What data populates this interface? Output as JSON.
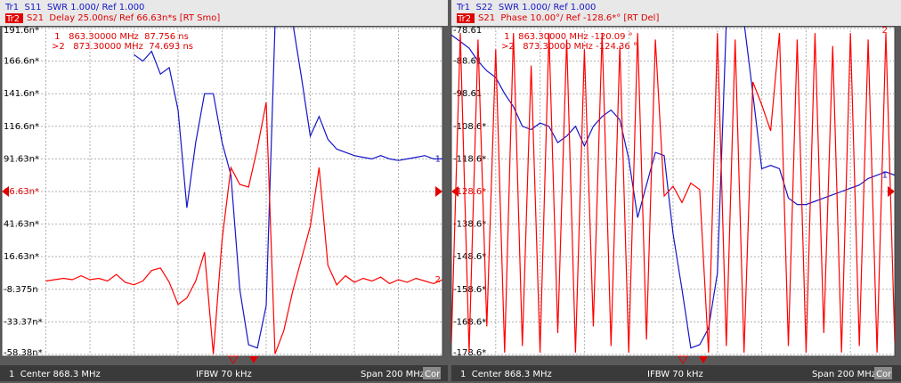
{
  "chart_data": [
    {
      "type": "line",
      "trace1_header": "Tr1  S11  SWR 1.000/ Ref 1.000",
      "trace2_id": "Tr2",
      "trace2_header": "S21  Delay 25.00ns/ Ref 66.63n*s [RT Smo]",
      "marker_readouts": [
        " 1   863.30000 MHz  87.756 ns",
        ">2   873.30000 MHz  74.693 ns"
      ],
      "status": [
        "1  Center 868.3 MHz",
        "IFBW 70 kHz",
        "Span 200 MHz",
        "Cor"
      ],
      "x": [
        768.3,
        772.3,
        776.3,
        780.3,
        784.3,
        788.3,
        792.3,
        796.3,
        800.3,
        804.3,
        808.3,
        812.3,
        816.3,
        820.3,
        824.3,
        828.3,
        832.3,
        836.3,
        840.3,
        844.3,
        848.3,
        852.3,
        856.3,
        860.3,
        864.3,
        868.3,
        872.3,
        876.3,
        880.3,
        884.3,
        888.3,
        892.3,
        896.3,
        900.3,
        904.3,
        908.3,
        912.3,
        916.3,
        920.3,
        924.3,
        928.3,
        932.3,
        936.3,
        940.3,
        944.3,
        948.3,
        952.3,
        956.3,
        960.3,
        964.3,
        968.3
      ],
      "xlim": [
        768.3,
        968.3
      ],
      "ylim": [
        -58.38,
        191.6
      ],
      "yticks": [
        {
          "value": 191.6,
          "label": "191.6n*"
        },
        {
          "value": 166.6,
          "label": "166.6n*"
        },
        {
          "value": 141.6,
          "label": "141.6n*"
        },
        {
          "value": 116.6,
          "label": "116.6n*"
        },
        {
          "value": 91.63,
          "label": "91.63n*"
        },
        {
          "value": 66.63,
          "label": "66.63n*"
        },
        {
          "value": 41.63,
          "label": "41.63n*"
        },
        {
          "value": 16.63,
          "label": "16.63n*"
        },
        {
          "value": -8.375,
          "label": "-8.375n"
        },
        {
          "value": -33.37,
          "label": "-33.37n*"
        },
        {
          "value": -58.38,
          "label": "-58.38n*"
        }
      ],
      "y2lim": [
        -5,
        5
      ],
      "grid": true,
      "series": [
        {
          "name": "1",
          "color": "#1515c8",
          "axis": "y2",
          "values": [
            null,
            null,
            null,
            null,
            null,
            null,
            null,
            null,
            null,
            null,
            null,
            null,
            null,
            null,
            null,
            4.2,
            4.0,
            4.3,
            3.6,
            3.8,
            2.5,
            -0.5,
            1.5,
            3.0,
            3.0,
            1.5,
            0.5,
            -3,
            -4.7,
            -4.8,
            -3.5,
            5.1,
            5.2,
            5.2,
            3.5,
            1.7,
            2.3,
            1.6,
            1.3,
            1.2,
            1.1,
            1.05,
            1.0,
            1.1,
            1.0,
            0.95,
            1.0,
            1.05,
            1.1,
            1.0,
            1.0
          ]
        },
        {
          "name": "2",
          "color": "#ff0000",
          "values": [
            null,
            null,
            null,
            null,
            null,
            -2,
            -1,
            0,
            -1,
            2,
            -1,
            0,
            -2,
            3,
            -3,
            -5,
            -2,
            6,
            8,
            -3,
            -20,
            -15,
            -2,
            20,
            -58,
            30,
            85,
            72,
            70,
            100,
            135,
            -58,
            -40,
            -10,
            15,
            40,
            85,
            10,
            -5,
            2,
            -3,
            0,
            -2,
            1,
            -4,
            -1,
            -3,
            0,
            -2,
            -4,
            -1
          ]
        }
      ]
    },
    {
      "type": "line",
      "trace1_header": "Tr1  S22  SWR 1.000/ Ref 1.000",
      "trace2_id": "Tr2",
      "trace2_header": "S21  Phase 10.00°/ Ref -128.6*° [RT Del]",
      "marker_readouts": [
        " 1   863.30000 MHz -120.09 °",
        ">2   873.30000 MHz -124.36 °"
      ],
      "status": [
        "1  Center 868.3 MHz",
        "IFBW 70 kHz",
        "Span 200 MHz",
        "Cor"
      ],
      "x": [
        768.3,
        772.3,
        776.3,
        780.3,
        784.3,
        788.3,
        792.3,
        796.3,
        800.3,
        804.3,
        808.3,
        812.3,
        816.3,
        820.3,
        824.3,
        828.3,
        832.3,
        836.3,
        840.3,
        844.3,
        848.3,
        852.3,
        856.3,
        860.3,
        864.3,
        868.3,
        872.3,
        876.3,
        880.3,
        884.3,
        888.3,
        892.3,
        896.3,
        900.3,
        904.3,
        908.3,
        912.3,
        916.3,
        920.3,
        924.3,
        928.3,
        932.3,
        936.3,
        940.3,
        944.3,
        948.3,
        952.3,
        956.3,
        960.3,
        964.3,
        968.3
      ],
      "xlim": [
        768.3,
        968.3
      ],
      "ylim": [
        -178.6,
        -78.61
      ],
      "yticks": [
        -78.61,
        -88.61,
        -98.61,
        {
          "value": -108.6,
          "label": "-108.6*"
        },
        {
          "value": -118.6,
          "label": "-118.6*"
        },
        {
          "value": -128.6,
          "label": "-128.6*"
        },
        {
          "value": -138.6,
          "label": "-138.6*"
        },
        {
          "value": -148.6,
          "label": "-148.6*"
        },
        {
          "value": -158.6,
          "label": "-158.6*"
        },
        {
          "value": -168.6,
          "label": "-168.6*"
        },
        {
          "value": -178.6,
          "label": "-178.6*"
        }
      ],
      "y2lim": [
        -5,
        5
      ],
      "grid": true,
      "series": [
        {
          "name": "1",
          "color": "#1515c8",
          "axis": "y2",
          "values": [
            4.8,
            4.6,
            4.4,
            4.0,
            3.7,
            3.5,
            3.0,
            2.6,
            2.0,
            1.9,
            2.1,
            2.0,
            1.5,
            1.7,
            2.0,
            1.4,
            2.0,
            2.3,
            2.5,
            2.2,
            1.0,
            -0.8,
            0.2,
            1.2,
            1.1,
            -1.3,
            -3.0,
            -4.8,
            -4.7,
            -4.2,
            -2.5,
            5.2,
            5.2,
            5.2,
            3.0,
            0.7,
            0.8,
            0.7,
            -0.2,
            -0.4,
            -0.4,
            -0.3,
            -0.2,
            -0.1,
            0.0,
            0.1,
            0.2,
            0.4,
            0.5,
            0.6,
            0.5
          ]
        },
        {
          "name": "2",
          "color": "#ff0000",
          "values": [
            -175,
            -80,
            -178,
            -82,
            -170,
            -85,
            -178,
            -80,
            -176,
            -90,
            -178,
            -80,
            -172,
            -82,
            -178,
            -85,
            -170,
            -80,
            -176,
            -84,
            -178,
            -80,
            -174,
            -82,
            -130,
            -127,
            -132,
            -126,
            -128,
            -178,
            -80,
            -176,
            -82,
            -178,
            -95,
            -102,
            -110,
            -80,
            -176,
            -82,
            -178,
            -80,
            -172,
            -84,
            -178,
            -80,
            -176,
            -82,
            -178,
            -80,
            -175
          ]
        }
      ]
    }
  ]
}
